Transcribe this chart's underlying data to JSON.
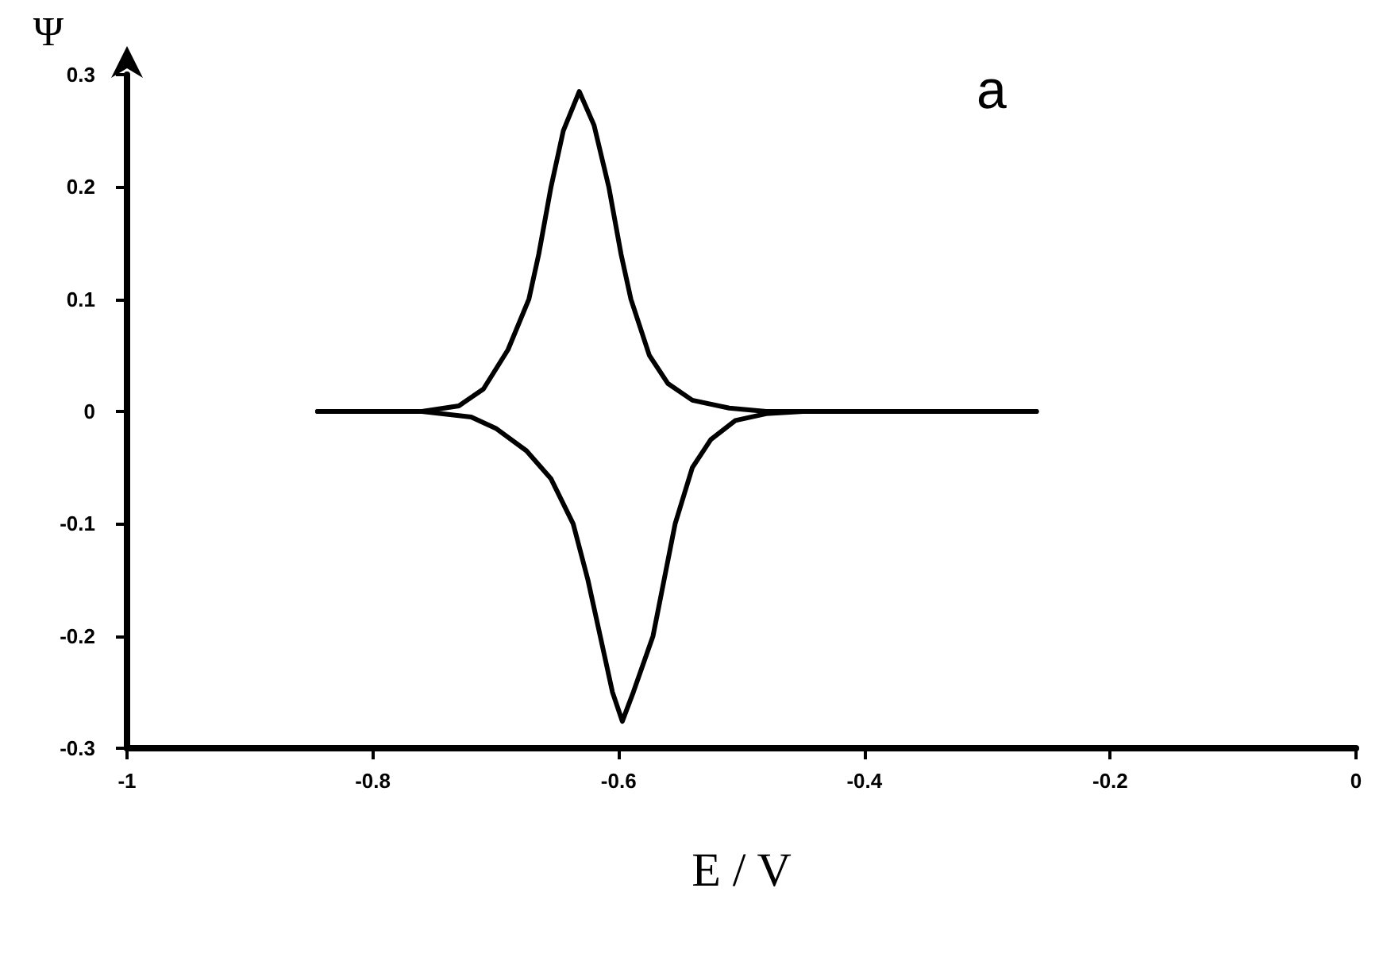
{
  "chart_data": {
    "type": "line",
    "xlabel": "E / V",
    "ylabel": "Ψ",
    "annotations": [
      "a"
    ],
    "xlim": [
      -1,
      0
    ],
    "xticks": [
      -1,
      -0.8,
      -0.6,
      -0.4,
      -0.2,
      0
    ],
    "ylim": [
      -0.3,
      0.3
    ],
    "yticks": [
      -0.3,
      -0.2,
      -0.1,
      0,
      0.1,
      0.2,
      0.3
    ],
    "grid": false,
    "marker": "none",
    "line_style": "solid",
    "series": [
      {
        "color": "#000000",
        "x": [
          -0.845,
          -0.76,
          -0.73,
          -0.71,
          -0.69,
          -0.673,
          -0.665,
          -0.655,
          -0.645,
          -0.632,
          -0.62,
          -0.608,
          -0.598,
          -0.59,
          -0.575,
          -0.56,
          -0.54,
          -0.51,
          -0.48,
          -0.26
        ],
        "values": [
          0,
          0,
          0.005,
          0.02,
          0.055,
          0.1,
          0.14,
          0.2,
          0.25,
          0.285,
          0.255,
          0.2,
          0.14,
          0.1,
          0.05,
          0.025,
          0.01,
          0.003,
          0,
          0
        ]
      },
      {
        "color": "#000000",
        "x": [
          -0.845,
          -0.76,
          -0.72,
          -0.7,
          -0.675,
          -0.655,
          -0.637,
          -0.625,
          -0.615,
          -0.605,
          -0.597,
          -0.588,
          -0.572,
          -0.563,
          -0.554,
          -0.54,
          -0.525,
          -0.505,
          -0.48,
          -0.45,
          -0.26
        ],
        "values": [
          0,
          0,
          -0.005,
          -0.015,
          -0.035,
          -0.06,
          -0.1,
          -0.15,
          -0.2,
          -0.25,
          -0.276,
          -0.25,
          -0.2,
          -0.15,
          -0.1,
          -0.05,
          -0.025,
          -0.008,
          -0.002,
          0,
          0
        ]
      }
    ]
  }
}
